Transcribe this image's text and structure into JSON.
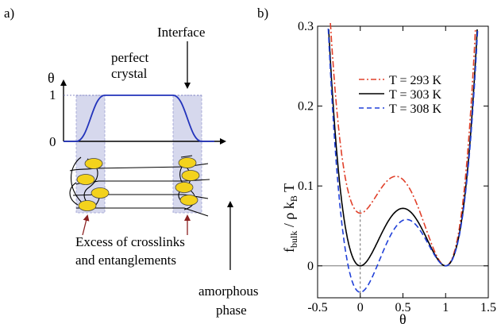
{
  "panel_a": {
    "label": "a)",
    "annotations": {
      "interface": "Interface",
      "perfect_crystal_line1": "perfect",
      "perfect_crystal_line2": "crystal",
      "excess_line1": "Excess of crosslinks",
      "excess_line2": "and entanglements",
      "amorphous_line1": "amorphous",
      "amorphous_line2": "phase"
    },
    "profile_axis": {
      "ylabel": "θ",
      "tick_1": "1",
      "tick_0": "0"
    },
    "colors": {
      "profile_line": "#2233bb",
      "interface_band": "#c9cbe8",
      "chain_node": "#f3d21c",
      "arrow_red": "#8b2020"
    }
  },
  "panel_b": {
    "label": "b)",
    "chart_data": {
      "type": "line",
      "xlabel": "θ",
      "ylabel": "f_bulk / ρ k_B T",
      "xlim": [
        -0.5,
        1.5
      ],
      "ylim": [
        -0.04,
        0.3
      ],
      "x_ticks": [
        "-0.5",
        "0",
        "0.5",
        "1",
        "1.5"
      ],
      "y_ticks": [
        "0",
        "0.1",
        "0.2",
        "0.3"
      ],
      "legend_position": "top-center",
      "series": [
        {
          "name": "T = 293 K",
          "color": "#e0402a",
          "dash": "dashdot",
          "min_at_0": 0.066,
          "barrier": 0.108
        },
        {
          "name": "T = 303 K",
          "color": "#000000",
          "dash": "solid",
          "min_at_0": 0.0,
          "barrier": 0.072
        },
        {
          "name": "T = 308 K",
          "color": "#2040d8",
          "dash": "dashed",
          "min_at_0": -0.033,
          "barrier": 0.057
        }
      ]
    }
  }
}
